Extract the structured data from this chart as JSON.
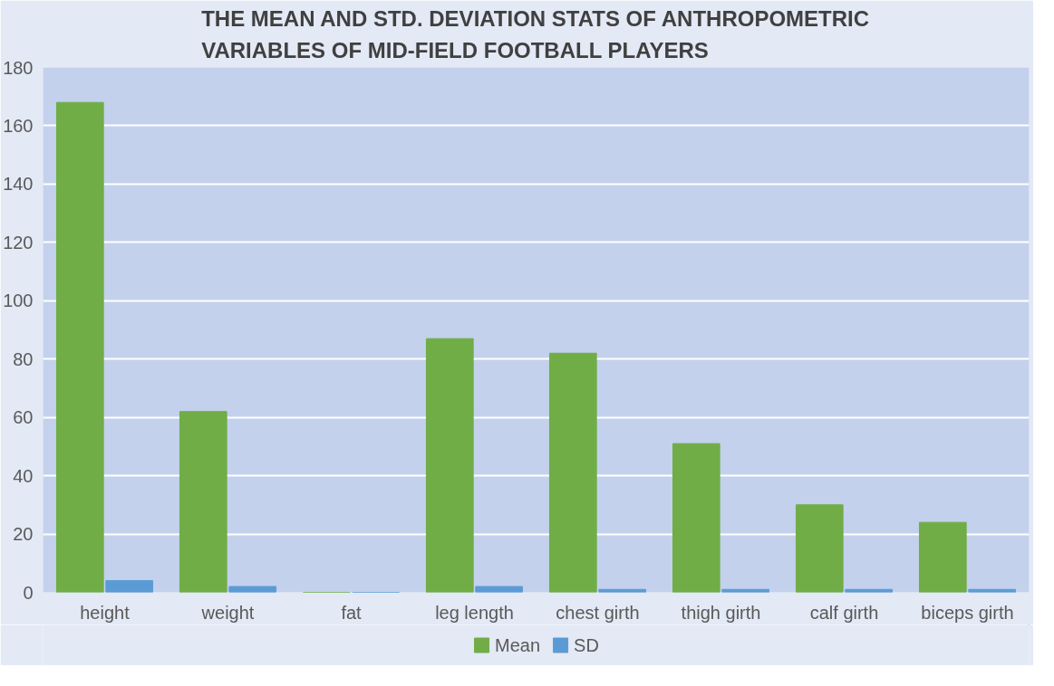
{
  "chart_data": {
    "type": "bar",
    "title": "THE MEAN AND STD. DEVIATION STATS OF ANTHROPOMETRIC\nVARIABLES OF MID-FIELD FOOTBALL PLAYERS",
    "categories": [
      "height",
      "weight",
      "fat",
      "leg length",
      "chest girth",
      "thigh girth",
      "calf girth",
      "biceps girth"
    ],
    "series": [
      {
        "name": "Mean",
        "color": "#70ad47",
        "values": [
          168,
          62,
          0,
          87,
          82,
          51,
          30,
          24
        ]
      },
      {
        "name": "SD",
        "color": "#5b9bd5",
        "values": [
          4,
          2,
          0,
          2,
          1,
          1,
          1,
          1
        ]
      }
    ],
    "ylim": [
      0,
      180
    ],
    "yticks": [
      0,
      20,
      40,
      60,
      80,
      100,
      120,
      140,
      160,
      180
    ],
    "grid": "y",
    "legend": "bottom"
  }
}
